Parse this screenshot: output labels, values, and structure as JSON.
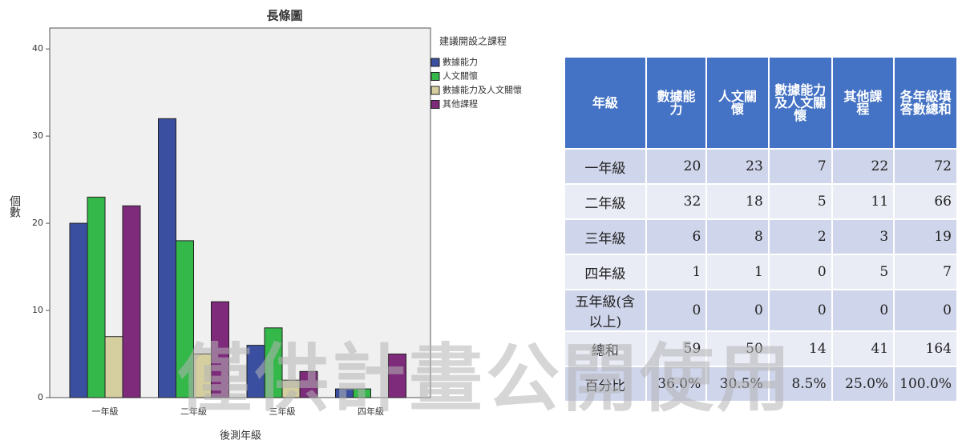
{
  "chart_data": {
    "type": "bar",
    "title": "長條圖",
    "x_label": "後測年級",
    "y_label": "個數",
    "legend_title": "建議開設之課程",
    "categories": [
      "一年級",
      "二年級",
      "三年級",
      "四年級"
    ],
    "series": [
      {
        "name": "數據能力",
        "color": "#3a4fa0",
        "values": [
          20,
          32,
          6,
          1
        ]
      },
      {
        "name": "人文關懷",
        "color": "#33b849",
        "values": [
          23,
          18,
          8,
          1
        ]
      },
      {
        "name": "數據能力及人文關懷",
        "color": "#d5cfa0",
        "values": [
          7,
          5,
          2,
          0
        ]
      },
      {
        "name": "其他課程",
        "color": "#7d2b7a",
        "values": [
          22,
          11,
          3,
          5
        ]
      }
    ],
    "ylim": [
      0,
      42.4
    ],
    "yticks": [
      0,
      10,
      20,
      30,
      40
    ]
  },
  "table": {
    "header": [
      "年級",
      "數據能力",
      "人文關懷",
      "數據能力及人文關懷",
      "其他課程",
      "各年級填答數總和"
    ],
    "rows": [
      [
        "一年級",
        "20",
        "23",
        "7",
        "22",
        "72"
      ],
      [
        "二年級",
        "32",
        "18",
        "5",
        "11",
        "66"
      ],
      [
        "三年級",
        "6",
        "8",
        "2",
        "3",
        "19"
      ],
      [
        "四年級",
        "1",
        "1",
        "0",
        "5",
        "7"
      ],
      [
        "五年級(含以上)",
        "0",
        "0",
        "0",
        "0",
        "0"
      ],
      [
        "總和",
        "59",
        "50",
        "14",
        "41",
        "164"
      ],
      [
        "百分比",
        "36.0%",
        "30.5%",
        "8.5%",
        "25.0%",
        "100.0%"
      ]
    ]
  },
  "watermark": "僅供計畫公開使用"
}
